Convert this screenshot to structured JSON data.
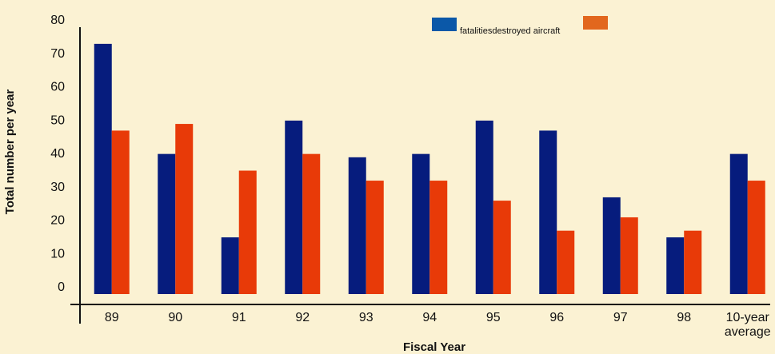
{
  "chart_data": {
    "type": "bar",
    "title": "",
    "xlabel": "Fiscal Year",
    "ylabel": "Total number per year",
    "ylim": [
      0,
      80
    ],
    "categories": [
      "89",
      "90",
      "91",
      "92",
      "93",
      "94",
      "95",
      "96",
      "97",
      "98",
      "10-year average"
    ],
    "category_lines": [
      [
        "89"
      ],
      [
        "90"
      ],
      [
        "91"
      ],
      [
        "92"
      ],
      [
        "93"
      ],
      [
        "94"
      ],
      [
        "95"
      ],
      [
        "96"
      ],
      [
        "97"
      ],
      [
        "98"
      ],
      [
        "10-year",
        "average"
      ]
    ],
    "y_ticks": [
      0,
      10,
      20,
      30,
      40,
      50,
      60,
      70,
      80
    ],
    "legend_position": "top-right",
    "legend_text": "fatalitiesdestroyed aircraft",
    "series": [
      {
        "name": "fatalities",
        "color": "#061c7d",
        "values": [
          75,
          42,
          17,
          52,
          41,
          42,
          52,
          49,
          29,
          17,
          42
        ]
      },
      {
        "name": "destroyed aircraft",
        "color": "#e83a08",
        "values": [
          49,
          51,
          37,
          42,
          34,
          34,
          28,
          19,
          23,
          19,
          34
        ]
      }
    ],
    "legend_colors": [
      "#0b58a8",
      "#e2671d"
    ],
    "grid": false
  }
}
